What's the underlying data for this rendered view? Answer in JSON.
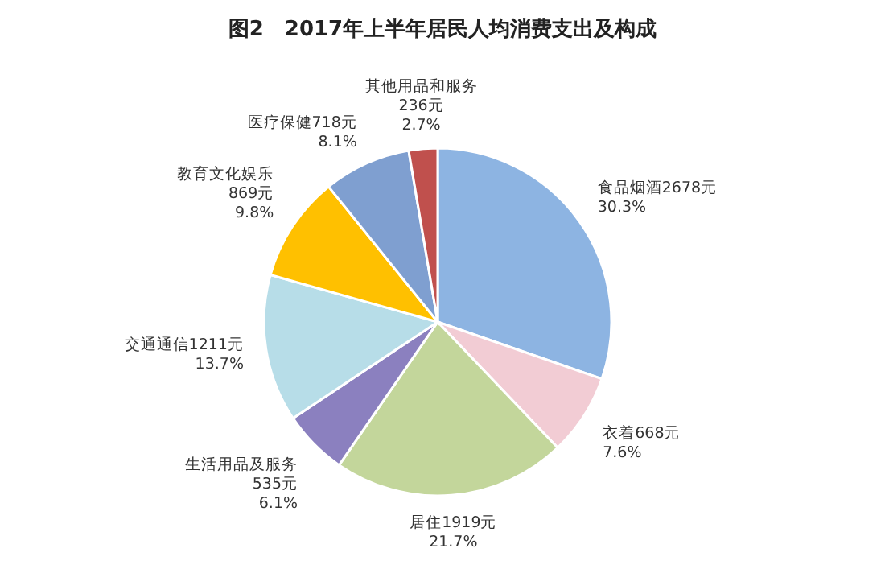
{
  "chart_data": {
    "type": "pie",
    "title": "图2　2017年上半年居民人均消费支出及构成",
    "categories": [
      "食品烟酒",
      "衣着",
      "居住",
      "生活用品及服务",
      "交通通信",
      "教育文化娱乐",
      "医疗保健",
      "其他用品和服务"
    ],
    "values": [
      2678,
      668,
      1919,
      535,
      1211,
      869,
      718,
      236
    ],
    "value_labels": [
      "2678元 30.3%",
      "668元 7.6%",
      "1919元 21.7%",
      "535元 6.1%",
      "1211元 13.7%",
      "869元 9.8%",
      "718元 8.1%",
      "236元 2.7%"
    ],
    "colors": [
      "#8db4e2",
      "#f2ccd4",
      "#c3d69b",
      "#8b80bf",
      "#b7dde8",
      "#ffc000",
      "#7f9fd0",
      "#c0504d"
    ],
    "legend": false
  }
}
